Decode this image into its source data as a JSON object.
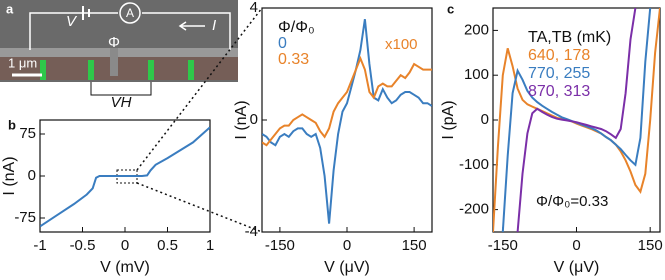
{
  "image_panel": {
    "panel_label": "a",
    "voltage_label": "V",
    "ammeter_label": "A",
    "current_label": "I",
    "flux_label": "Φ",
    "scale_bar_label": "1 μm",
    "hall_voltage_label": "VH"
  },
  "chart_data": [
    {
      "type": "line",
      "panel_label": "b",
      "xlabel": "V (mV)",
      "ylabel": "I (nA)",
      "x": [
        -1,
        -0.8,
        -0.6,
        -0.45,
        -0.38,
        -0.34,
        -0.3,
        -0.2,
        0,
        0.2,
        0.26,
        0.3,
        0.36,
        0.5,
        0.8,
        1
      ],
      "series": [
        {
          "name": "I",
          "color": "#3a7dc0",
          "values": [
            -90,
            -70,
            -50,
            -33,
            -22,
            -3,
            0,
            0,
            0,
            0,
            1,
            10,
            20,
            32,
            60,
            87
          ]
        }
      ],
      "xlim": [
        -1,
        1
      ],
      "xticks": [
        -1,
        -0.5,
        0,
        0.5,
        1
      ],
      "ylim": [
        -100,
        100
      ],
      "yticks": [
        -75,
        0,
        75
      ]
    },
    {
      "type": "line",
      "xlabel": "V (μV)",
      "ylabel": "I (nA)",
      "legend_title": "Φ/Φ₀",
      "annotation": "x100",
      "x": [
        -190,
        -180,
        -170,
        -160,
        -150,
        -140,
        -130,
        -120,
        -110,
        -100,
        -90,
        -80,
        -70,
        -60,
        -50,
        -40,
        -30,
        -20,
        -10,
        0,
        10,
        20,
        30,
        40,
        50,
        60,
        70,
        80,
        90,
        100,
        110,
        120,
        130,
        140,
        150,
        160,
        170,
        180,
        190
      ],
      "series": [
        {
          "name": "0",
          "color": "#3a7dc0",
          "values": [
            -0.5,
            -0.6,
            -0.8,
            -0.9,
            -0.6,
            -0.5,
            -0.6,
            -0.4,
            -0.3,
            -0.3,
            -0.5,
            -0.6,
            -0.5,
            -1.0,
            -2.0,
            -3.7,
            -1.8,
            -0.5,
            0.3,
            0.6,
            1.2,
            1.8,
            2.5,
            3.6,
            2.0,
            0.8,
            0.7,
            1.1,
            0.8,
            0.6,
            0.7,
            0.9,
            1.0,
            1.0,
            0.9,
            0.8,
            0.6,
            0.6,
            0.5
          ]
        },
        {
          "name": "0.33",
          "color": "#e8832a",
          "values": [
            -0.8,
            -0.9,
            -0.7,
            -0.5,
            -0.3,
            -0.2,
            -0.2,
            0,
            0.1,
            0.2,
            0.1,
            0,
            -0.1,
            -0.4,
            -0.6,
            -0.3,
            0.3,
            0.6,
            0.8,
            1.0,
            1.4,
            1.8,
            2.2,
            1.8,
            1.0,
            0.8,
            1.2,
            1.3,
            1.2,
            1.2,
            1.4,
            1.6,
            1.5,
            1.7,
            2.0,
            1.9,
            1.8,
            1.8,
            1.8
          ]
        }
      ],
      "xlim": [
        -190,
        190
      ],
      "xticks": [
        -150,
        0,
        150
      ],
      "ylim": [
        -4,
        4
      ],
      "yticks": [
        -4,
        0,
        4
      ]
    },
    {
      "type": "line",
      "panel_label": "c",
      "xlabel": "V (μV)",
      "ylabel": "I (pA)",
      "legend_title": "TA,TB (mK)",
      "annotation": "Φ/Φ₀=0.33",
      "x": [
        -170,
        -160,
        -150,
        -140,
        -130,
        -120,
        -110,
        -100,
        -90,
        -80,
        -70,
        -60,
        -50,
        -40,
        -30,
        -20,
        -10,
        0,
        10,
        20,
        30,
        40,
        50,
        60,
        70,
        80,
        90,
        100,
        110,
        120,
        130,
        140,
        150,
        160,
        170
      ],
      "series": [
        {
          "name": "640, 178",
          "color": "#e8832a",
          "values": [
            -250,
            -60,
            100,
            160,
            120,
            70,
            45,
            35,
            30,
            25,
            20,
            15,
            10,
            5,
            2,
            0,
            -3,
            -8,
            -12,
            -16,
            -20,
            -25,
            -30,
            -38,
            -45,
            -55,
            -70,
            -90,
            -115,
            -145,
            -160,
            -120,
            0,
            150,
            250
          ]
        },
        {
          "name": "770, 255",
          "color": "#3a7dc0",
          "values": [
            null,
            null,
            -250,
            -80,
            60,
            110,
            90,
            65,
            50,
            40,
            32,
            25,
            18,
            12,
            6,
            2,
            -2,
            -6,
            -10,
            -14,
            -18,
            -23,
            -30,
            -38,
            -45,
            -55,
            -65,
            -78,
            -90,
            -100,
            -40,
            130,
            250,
            null,
            null
          ]
        },
        {
          "name": "870, 313",
          "color": "#7b2fa8",
          "values": [
            null,
            null,
            null,
            null,
            null,
            -250,
            -120,
            -30,
            15,
            25,
            18,
            12,
            7,
            3,
            1,
            -1,
            -3,
            -5,
            -8,
            -11,
            -14,
            -17,
            -20,
            -25,
            -32,
            -40,
            -20,
            60,
            180,
            250,
            null,
            null,
            null,
            null,
            null
          ]
        }
      ],
      "xlim": [
        -170,
        170
      ],
      "xticks": [
        -150,
        0,
        150
      ],
      "ylim": [
        -250,
        250
      ],
      "yticks": [
        -200,
        -100,
        0,
        100,
        200
      ]
    }
  ]
}
